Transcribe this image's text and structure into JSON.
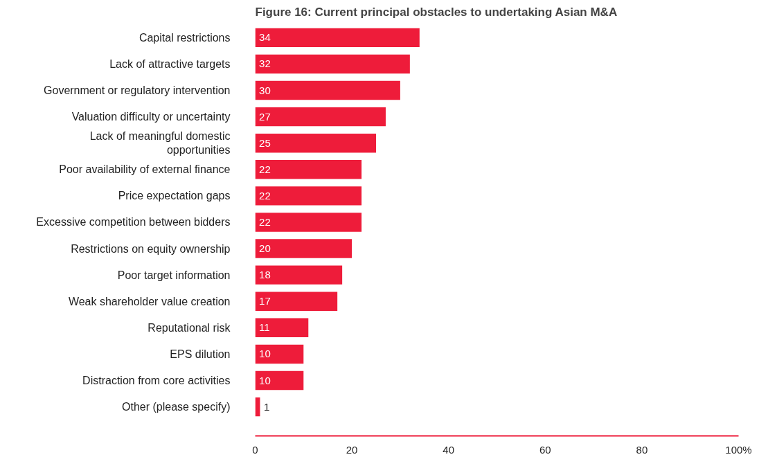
{
  "chart_data": {
    "type": "bar",
    "orientation": "horizontal",
    "title": "Figure 16: Current principal obstacles to undertaking Asian M&A",
    "categories": [
      "Capital restrictions",
      "Lack of attractive targets",
      "Government or regulatory intervention",
      "Valuation difficulty or uncertainty",
      "Lack of meaningful domestic\nopportunities",
      "Poor availability of external finance",
      "Price expectation gaps",
      "Excessive competition between bidders",
      "Restrictions on equity ownership",
      "Poor target information",
      "Weak shareholder value creation",
      "Reputational risk",
      "EPS dilution",
      "Distraction from core activities",
      "Other (please specify)"
    ],
    "values": [
      34,
      32,
      30,
      27,
      25,
      22,
      22,
      22,
      20,
      18,
      17,
      11,
      10,
      10,
      1
    ],
    "color": "#ee1c3a",
    "xlim": [
      0,
      100
    ],
    "xticks": [
      0,
      20,
      40,
      60,
      80,
      {
        "value": 100,
        "label": "100%"
      }
    ],
    "data_labels": true,
    "grid": false
  }
}
